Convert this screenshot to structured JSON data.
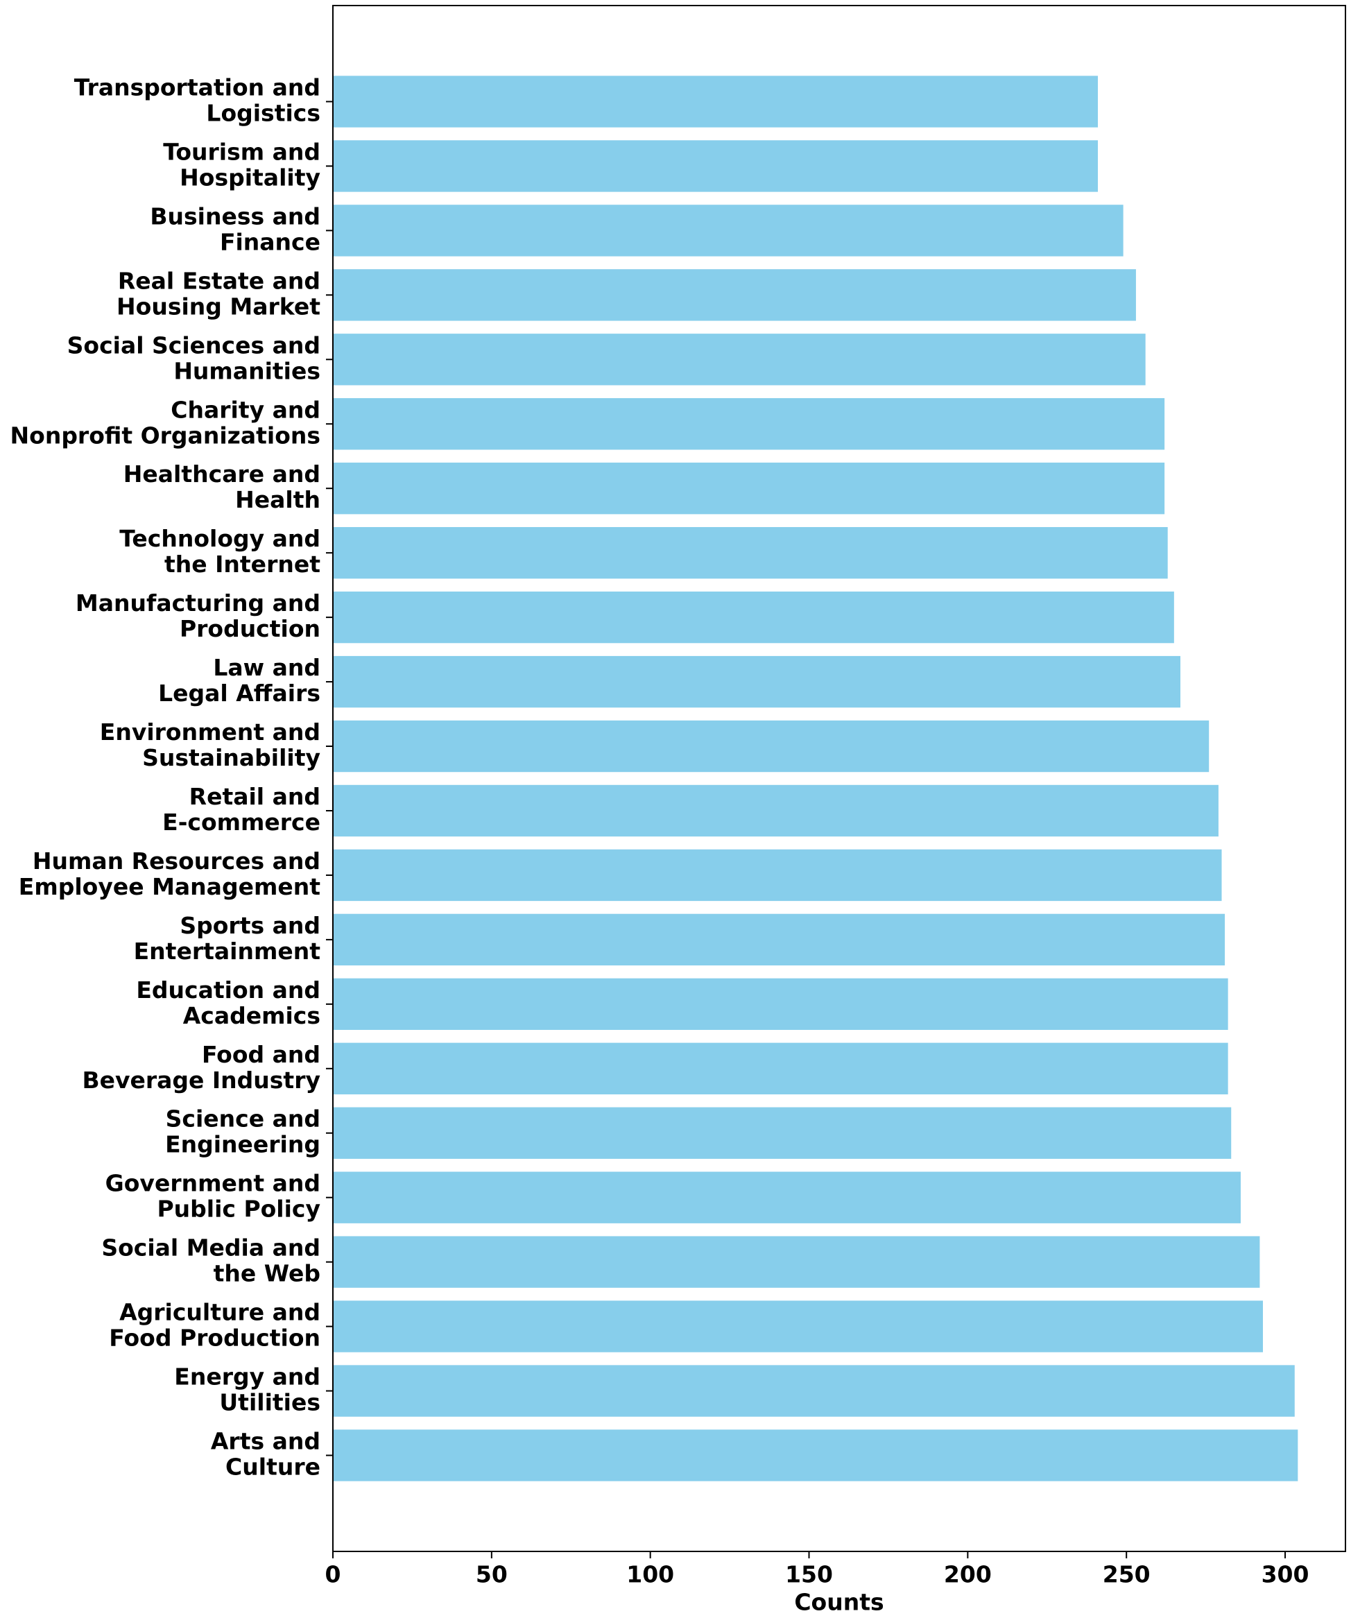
{
  "chart_data": {
    "type": "barh",
    "xlabel": "Counts",
    "categories": [
      [
        "Transportation and",
        "Logistics"
      ],
      [
        "Tourism and",
        "Hospitality"
      ],
      [
        "Business and",
        "Finance"
      ],
      [
        "Real Estate and",
        "Housing Market"
      ],
      [
        "Social Sciences and",
        "Humanities"
      ],
      [
        "Charity and",
        "Nonprofit Organizations"
      ],
      [
        "Healthcare and",
        "Health"
      ],
      [
        "Technology and",
        "the Internet"
      ],
      [
        "Manufacturing and",
        "Production"
      ],
      [
        "Law and",
        "Legal Affairs"
      ],
      [
        "Environment and",
        "Sustainability"
      ],
      [
        "Retail and",
        "E-commerce"
      ],
      [
        "Human Resources and",
        "Employee Management"
      ],
      [
        "Sports and",
        "Entertainment"
      ],
      [
        "Education and",
        "Academics"
      ],
      [
        "Food and",
        "Beverage Industry"
      ],
      [
        "Science and",
        "Engineering"
      ],
      [
        "Government and",
        "Public Policy"
      ],
      [
        "Social Media and",
        "the Web"
      ],
      [
        "Agriculture and",
        "Food Production"
      ],
      [
        "Energy and",
        "Utilities"
      ],
      [
        "Arts and",
        "Culture"
      ]
    ],
    "values": [
      241,
      241,
      249,
      253,
      256,
      262,
      262,
      263,
      265,
      267,
      276,
      279,
      280,
      281,
      282,
      282,
      283,
      286,
      292,
      293,
      303,
      304
    ],
    "color": "#87ceeb",
    "xlim": [
      0,
      319
    ],
    "xticks": [
      0,
      50,
      100,
      150,
      200,
      250,
      300
    ]
  }
}
